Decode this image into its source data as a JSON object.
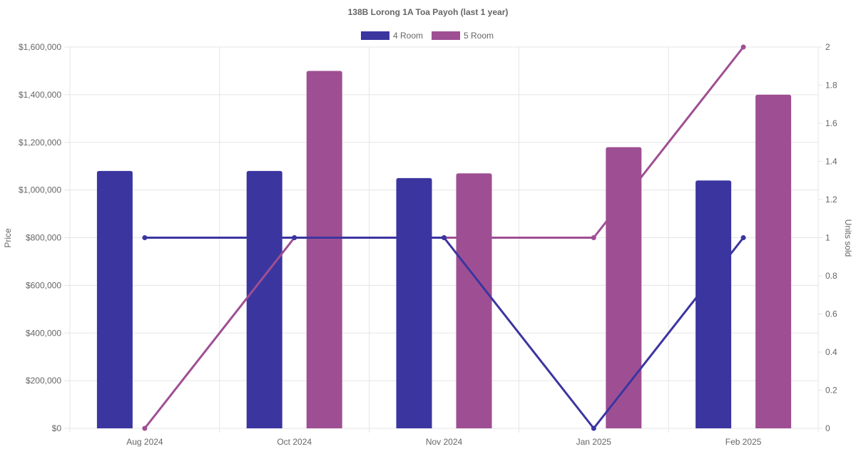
{
  "chart_data": {
    "type": "bar",
    "title": "138B Lorong 1A Toa Payoh (last 1 year)",
    "categories": [
      "Aug 2024",
      "Oct 2024",
      "Nov 2024",
      "Jan 2025",
      "Feb 2025"
    ],
    "ylabel": "Price",
    "y2label": "Units sold",
    "ylim": [
      0,
      1600000
    ],
    "y2lim": [
      0,
      2
    ],
    "y_ticks": [
      "$0",
      "$200,000",
      "$400,000",
      "$600,000",
      "$800,000",
      "$1,000,000",
      "$1,200,000",
      "$1,400,000",
      "$1,600,000"
    ],
    "y2_ticks": [
      "0",
      "0.2",
      "0.4",
      "0.6",
      "0.8",
      "1",
      "1.2",
      "1.4",
      "1.6",
      "1.8",
      "2"
    ],
    "grid": true,
    "legend_position": "top",
    "series": [
      {
        "name": "4 Room",
        "color": "#3b35a0",
        "price": [
          1080000,
          1080000,
          1050000,
          null,
          1040000
        ],
        "units_sold": [
          1,
          1,
          1,
          0,
          1
        ]
      },
      {
        "name": "5 Room",
        "color": "#9e4f93",
        "price": [
          null,
          1500000,
          1070000,
          1180000,
          1400000
        ],
        "units_sold": [
          0,
          1,
          1,
          1,
          2
        ]
      }
    ]
  }
}
